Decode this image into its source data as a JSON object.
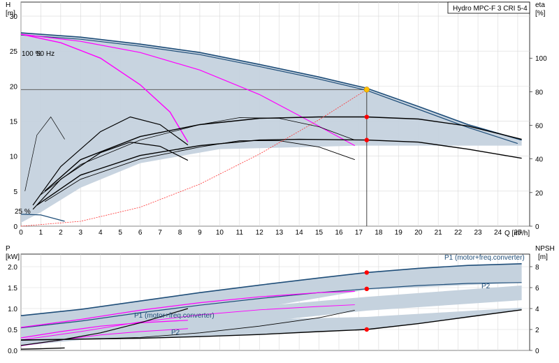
{
  "legend": {
    "title": "Hydro MPC-F 3 CRI 5-4"
  },
  "chart_data": [
    {
      "type": "line",
      "panel": "head-efficiency",
      "ylabel_left": [
        "H",
        "[m]"
      ],
      "ylabel_right": [
        "eta",
        "[%]"
      ],
      "xlabel": "Q [m³/h]",
      "xlim": [
        0,
        25.6
      ],
      "ylim": [
        0,
        32
      ],
      "ylim_right": [
        0,
        133.33
      ],
      "x_ticks": [
        "0",
        "1",
        "2",
        "3",
        "4",
        "5",
        "6",
        "7",
        "8",
        "9",
        "10",
        "11",
        "12",
        "13",
        "14",
        "15",
        "16",
        "17",
        "18",
        "19",
        "20",
        "21",
        "22",
        "23",
        "24",
        "25"
      ],
      "y_ticks": [
        "0",
        "5",
        "10",
        "15",
        "20",
        "25",
        "30"
      ],
      "y_right_ticks": [
        "0",
        "20",
        "40",
        "60",
        "80",
        "100"
      ],
      "annotations": {
        "speed_max": "100 %",
        "speed_freq": "50 Hz",
        "speed_min": "25 %"
      },
      "grid": true,
      "duty_point": {
        "q": 17.4,
        "h": 19.5
      },
      "setpoint_h": 19.5,
      "colors": {
        "band": "#c5d2de",
        "curve": "#1f4e79",
        "eff": "#ff00ff",
        "system": "#ff3030",
        "point": "#ff0000",
        "duty": "#ffc000"
      },
      "series": [
        {
          "role": "qh-max-3",
          "x": [
            0,
            3,
            6,
            9,
            12,
            15,
            17.4,
            20,
            22.5,
            25.2
          ],
          "y": [
            27.6,
            27,
            26,
            24.8,
            23.1,
            21.3,
            19.7,
            17.1,
            14.5,
            12.3
          ]
        },
        {
          "role": "qh-max-3b",
          "x": [
            0,
            3,
            6,
            9,
            12,
            15,
            17.4,
            20,
            22.5,
            25
          ],
          "y": [
            27.3,
            26.7,
            25.7,
            24.5,
            22.8,
            21,
            19.4,
            16.7,
            14.1,
            11.8
          ]
        },
        {
          "role": "qh-2",
          "x": [
            0,
            3,
            6,
            9,
            12,
            14,
            16.8
          ],
          "y": [
            27.4,
            26.4,
            24.8,
            22.3,
            18.8,
            15.8,
            11.5
          ]
        },
        {
          "role": "qh-1",
          "x": [
            0,
            2,
            4,
            6,
            7.5,
            8.4
          ],
          "y": [
            27.4,
            26.2,
            24,
            20.2,
            16.3,
            12
          ]
        },
        {
          "role": "eff-3",
          "x": [
            1.2,
            3,
            6,
            9,
            12,
            15,
            17.4,
            20,
            22.5,
            25.2
          ],
          "y": [
            5,
            9.5,
            12.8,
            14.5,
            15.4,
            15.6,
            15.6,
            15.3,
            14.3,
            12.4
          ]
        },
        {
          "role": "eff-3-low",
          "x": [
            0.8,
            3,
            6,
            9,
            12,
            14,
            17.4,
            20,
            22.5,
            25.2
          ],
          "y": [
            3,
            7.3,
            10.1,
            11.5,
            12.3,
            12.4,
            12.3,
            12,
            11,
            9.7
          ]
        },
        {
          "role": "eff-2",
          "x": [
            1,
            3,
            6,
            9,
            11,
            13,
            15,
            16.8
          ],
          "y": [
            4.5,
            8.8,
            12.3,
            14.5,
            15.5,
            15.4,
            14.2,
            12.3
          ]
        },
        {
          "role": "eff-2-low",
          "x": [
            1.2,
            3,
            6,
            9,
            11,
            13,
            15,
            16.8
          ],
          "y": [
            3.5,
            6.7,
            9.6,
            11.3,
            12.2,
            12.2,
            11.3,
            9.5
          ]
        },
        {
          "role": "eff-1",
          "x": [
            0.6,
            2,
            4,
            5.5,
            7,
            8.4
          ],
          "y": [
            3,
            8.5,
            13.5,
            15.6,
            14.5,
            11.6
          ]
        },
        {
          "role": "eff-1-low",
          "x": [
            0.6,
            2,
            4,
            5.5,
            7,
            8.4
          ],
          "y": [
            2.4,
            6.7,
            10.5,
            12,
            11.4,
            9.4
          ]
        },
        {
          "role": "eff-small",
          "x": [
            0.2,
            0.8,
            1.5,
            2.2
          ],
          "y": [
            5,
            13,
            15.6,
            12.4
          ]
        },
        {
          "role": "qh-min",
          "x": [
            0,
            1,
            2.2
          ],
          "y": [
            1.7,
            1.6,
            0.7
          ]
        },
        {
          "role": "system",
          "x": [
            0,
            3,
            6,
            9,
            12,
            15,
            17.4
          ],
          "y": [
            0,
            0.7,
            2.7,
            6,
            10.3,
            15.2,
            19.5
          ]
        }
      ],
      "points": [
        {
          "q": 17.4,
          "h": 15.6
        },
        {
          "q": 17.4,
          "h": 12.3
        }
      ]
    },
    {
      "type": "line",
      "panel": "power-npsh",
      "ylabel_left": [
        "P",
        "[kW]"
      ],
      "ylabel_right": [
        "NPSH",
        "[m]"
      ],
      "xlim": [
        0,
        25.6
      ],
      "ylim": [
        0,
        2.3
      ],
      "ylim_right": [
        0,
        9.2
      ],
      "y_ticks": [
        "0.0",
        "0.5",
        "1.0",
        "1.5",
        "2.0"
      ],
      "y_right_ticks": [
        "0",
        "2",
        "4",
        "6",
        "8"
      ],
      "labels": {
        "p1": "P1 (motor+freq.converter)",
        "p2": "P2"
      },
      "grid": true,
      "series": [
        {
          "role": "p1-3",
          "x": [
            0,
            3,
            6,
            9,
            12,
            15,
            17.4,
            20,
            22.5,
            25.2
          ],
          "y": [
            0.83,
            0.98,
            1.18,
            1.38,
            1.56,
            1.73,
            1.86,
            1.96,
            2.03,
            2.07
          ]
        },
        {
          "role": "p2-3",
          "x": [
            0,
            3,
            6,
            9,
            12,
            15,
            17.4,
            20,
            22.5,
            25.2
          ],
          "y": [
            0.54,
            0.7,
            0.9,
            1.08,
            1.24,
            1.38,
            1.47,
            1.55,
            1.6,
            1.62
          ]
        },
        {
          "role": "p1-2",
          "x": [
            0,
            3,
            6,
            9,
            12,
            15,
            16.8
          ],
          "y": [
            0.55,
            0.74,
            0.96,
            1.14,
            1.28,
            1.38,
            1.41
          ]
        },
        {
          "role": "p2-2",
          "x": [
            0,
            3,
            6,
            9,
            12,
            15,
            16.8
          ],
          "y": [
            0.25,
            0.45,
            0.68,
            0.85,
            0.97,
            1.05,
            1.09
          ]
        },
        {
          "role": "p1-1",
          "x": [
            0,
            2,
            4,
            6,
            8.4
          ],
          "y": [
            0.3,
            0.45,
            0.58,
            0.66,
            0.72
          ]
        },
        {
          "role": "p2-1",
          "x": [
            0,
            2,
            4,
            6,
            8.4
          ],
          "y": [
            0.11,
            0.25,
            0.37,
            0.45,
            0.52
          ]
        },
        {
          "role": "npsh-3",
          "x": [
            0,
            3,
            6,
            9,
            12,
            15,
            17.4,
            20,
            22.5,
            25.2
          ],
          "y": [
            0.25,
            0.27,
            0.29,
            0.33,
            0.38,
            0.45,
            0.5,
            0.64,
            0.8,
            0.97
          ]
        },
        {
          "role": "npsh-2",
          "x": [
            0,
            3,
            6,
            9,
            12,
            15,
            16.8
          ],
          "y": [
            0.24,
            0.27,
            0.31,
            0.42,
            0.58,
            0.78,
            0.96
          ]
        },
        {
          "role": "npsh-1",
          "x": [
            0,
            2,
            4,
            6,
            8.4
          ],
          "y": [
            0.12,
            0.25,
            0.42,
            0.66,
            1.0
          ]
        },
        {
          "role": "npsh-small",
          "x": [
            0,
            1,
            2.2
          ],
          "y": [
            0.03,
            0.04,
            0.06
          ]
        }
      ],
      "points": [
        {
          "q": 17.4,
          "p": 1.86
        },
        {
          "q": 17.4,
          "p": 1.47
        },
        {
          "q": 17.4,
          "p": 0.5
        }
      ]
    }
  ]
}
